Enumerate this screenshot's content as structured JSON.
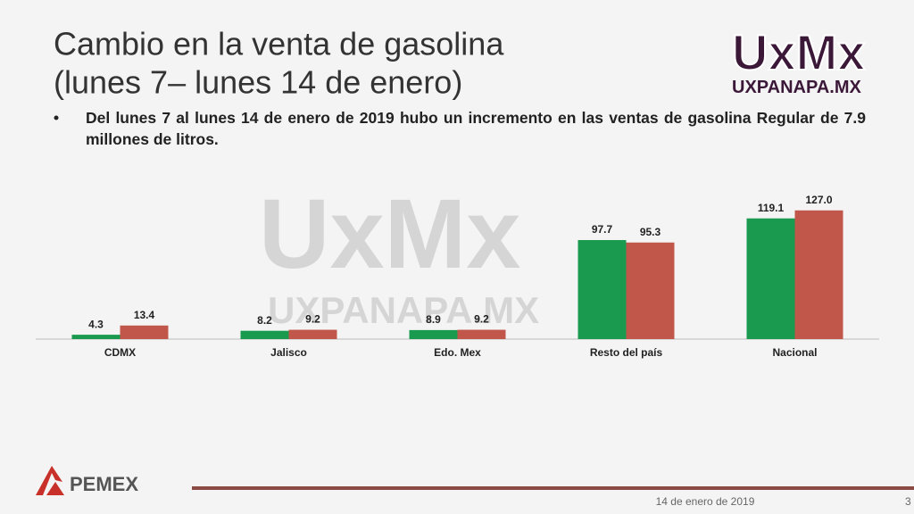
{
  "logo": {
    "mark": "UxMx",
    "site": "UXPANAPA.MX"
  },
  "chart_data": {
    "type": "bar",
    "title": "Cambio en la venta de gasolina",
    "subtitle": "(lunes 7– lunes 14 de enero)",
    "note": "Del lunes 7 al lunes 14 de enero de 2019 hubo un incremento en las ventas de gasolina Regular de 7.9 millones de litros.",
    "categories": [
      "CDMX",
      "Jalisco",
      "Edo. Mex",
      "Resto del país",
      "Nacional"
    ],
    "series": [
      {
        "color": "#1a9a4e",
        "values": [
          4.3,
          8.2,
          8.9,
          97.7,
          119.1
        ],
        "value_labels": [
          "4.3",
          "8.2",
          "8.9",
          "97.7",
          "119.1"
        ]
      },
      {
        "color": "#c0574a",
        "values": [
          13.4,
          9.2,
          9.2,
          95.3,
          127
        ],
        "value_labels": [
          "13.4",
          "9.2",
          "9.2",
          "95.3",
          "127.0"
        ]
      }
    ],
    "ylim": [
      0,
      140
    ]
  },
  "footer": {
    "brand": "PEMEX",
    "date": "14 de enero de 2019",
    "page": "3"
  }
}
